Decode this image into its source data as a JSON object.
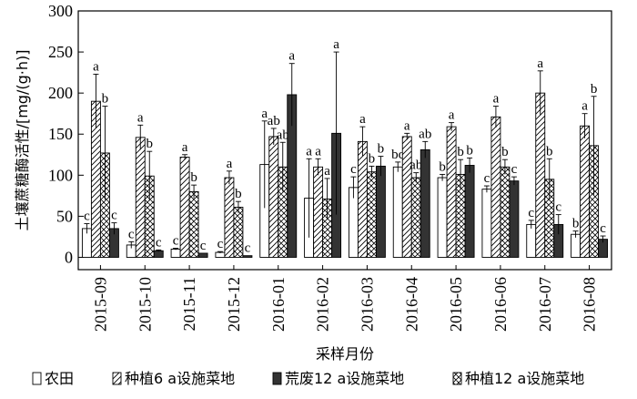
{
  "chart_data": {
    "type": "bar",
    "xlabel": "采样月份",
    "ylabel": "土壤蔗糖酶活性/[mg/(g·h)]",
    "ylim": [
      -15,
      300
    ],
    "yticks": [
      0,
      50,
      100,
      150,
      200,
      250,
      300
    ],
    "categories": [
      "2015-09",
      "2015-10",
      "2015-11",
      "2015-12",
      "2016-01",
      "2016-02",
      "2016-03",
      "2016-04",
      "2016-05",
      "2016-06",
      "2016-07",
      "2016-08"
    ],
    "series": [
      {
        "name": "农田",
        "pattern": "white",
        "values": [
          35,
          15,
          10,
          6,
          113,
          72,
          85,
          110,
          97,
          83,
          40,
          28
        ],
        "errors": [
          6,
          4,
          1,
          1,
          53,
          48,
          13,
          6,
          4,
          4,
          5,
          4
        ],
        "labels": [
          "c",
          "c",
          "c",
          "c",
          "a",
          "a",
          "c",
          "bc",
          "b",
          "c",
          "c",
          "b"
        ]
      },
      {
        "name": "种植6 a设施菜地",
        "pattern": "diag",
        "values": [
          190,
          146,
          122,
          97,
          147,
          110,
          141,
          147,
          159,
          171,
          200,
          160
        ],
        "errors": [
          33,
          15,
          3,
          8,
          10,
          10,
          18,
          4,
          5,
          13,
          27,
          15
        ],
        "labels": [
          "a",
          "a",
          "a",
          "a",
          "ab",
          "a",
          "a",
          "a",
          "a",
          "a",
          "a",
          "a"
        ]
      },
      {
        "name": "种植12 a设施菜地",
        "pattern": "cross",
        "values": [
          127,
          99,
          80,
          61,
          110,
          71,
          104,
          97,
          101,
          110,
          95,
          136
        ],
        "errors": [
          57,
          30,
          8,
          7,
          30,
          25,
          7,
          6,
          18,
          9,
          25,
          60
        ],
        "labels": [
          "b",
          "b",
          "b",
          "b",
          "ab",
          "a",
          "b",
          "ab",
          "b",
          "b",
          "b",
          "b"
        ]
      },
      {
        "name": "荒废12 a设施菜地",
        "pattern": "black",
        "values": [
          35,
          8,
          5,
          2,
          198,
          151,
          111,
          131,
          112,
          93,
          40,
          22
        ],
        "errors": [
          7,
          1,
          0,
          0,
          38,
          99,
          12,
          10,
          9,
          5,
          12,
          4
        ],
        "labels": [
          "c",
          "c",
          "c",
          "c",
          "a",
          "a",
          "b",
          "ab",
          "b",
          "c",
          "c",
          "c"
        ]
      }
    ],
    "legend_order": [
      "农田",
      "种植6 a设施菜地",
      "荒废12 a设施菜地",
      "种植12 a设施菜地"
    ],
    "legend_position": "bottom",
    "grid": false
  }
}
